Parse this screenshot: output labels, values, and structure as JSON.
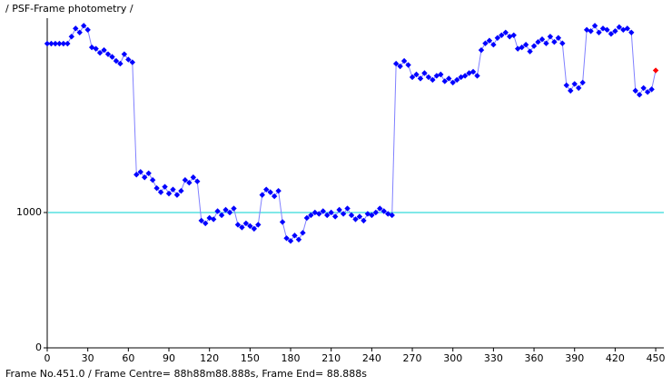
{
  "title": "/ PSF-Frame photometry /",
  "status_bar": "Frame No.451.0 / Frame Centre= 88h88m88.888s,  Frame End= 88.888s",
  "chart_data": {
    "type": "scatter",
    "x": [
      0,
      3,
      6,
      9,
      12,
      15,
      18,
      21,
      24,
      27,
      30,
      33,
      36,
      39,
      42,
      45,
      48,
      51,
      54,
      57,
      60,
      63,
      66,
      69,
      72,
      75,
      78,
      81,
      84,
      87,
      90,
      93,
      96,
      99,
      102,
      105,
      108,
      111,
      114,
      117,
      120,
      123,
      126,
      129,
      132,
      135,
      138,
      141,
      144,
      147,
      150,
      153,
      156,
      159,
      162,
      165,
      168,
      171,
      174,
      177,
      180,
      183,
      186,
      189,
      192,
      195,
      198,
      201,
      204,
      207,
      210,
      213,
      216,
      219,
      222,
      225,
      228,
      231,
      234,
      237,
      240,
      243,
      246,
      249,
      252,
      255,
      258,
      261,
      264,
      267,
      270,
      273,
      276,
      279,
      282,
      285,
      288,
      291,
      294,
      297,
      300,
      303,
      306,
      309,
      312,
      315,
      318,
      321,
      324,
      327,
      330,
      333,
      336,
      339,
      342,
      345,
      348,
      351,
      354,
      357,
      360,
      363,
      366,
      369,
      372,
      375,
      378,
      381,
      384,
      387,
      390,
      393,
      396,
      399,
      402,
      405,
      408,
      411,
      414,
      417,
      420,
      423,
      426,
      429,
      432,
      435,
      438,
      441,
      444,
      447,
      450
    ],
    "values": [
      2248,
      2248,
      2248,
      2248,
      2248,
      2248,
      2300,
      2360,
      2330,
      2380,
      2350,
      2220,
      2210,
      2180,
      2200,
      2170,
      2150,
      2120,
      2100,
      2170,
      2130,
      2110,
      1280,
      1300,
      1260,
      1290,
      1240,
      1180,
      1150,
      1190,
      1140,
      1170,
      1130,
      1160,
      1240,
      1220,
      1260,
      1230,
      940,
      920,
      960,
      950,
      1010,
      980,
      1020,
      1000,
      1030,
      910,
      890,
      920,
      900,
      880,
      910,
      1130,
      1170,
      1150,
      1120,
      1160,
      930,
      810,
      790,
      830,
      800,
      850,
      960,
      980,
      1000,
      990,
      1010,
      980,
      1000,
      970,
      1020,
      990,
      1030,
      980,
      950,
      970,
      940,
      990,
      980,
      1000,
      1030,
      1010,
      990,
      980,
      2100,
      2080,
      2120,
      2090,
      2000,
      2020,
      1990,
      2030,
      2000,
      1980,
      2010,
      2020,
      1970,
      1990,
      1960,
      1980,
      2000,
      2010,
      2030,
      2040,
      2010,
      2200,
      2250,
      2270,
      2240,
      2290,
      2310,
      2330,
      2300,
      2310,
      2210,
      2220,
      2240,
      2190,
      2230,
      2260,
      2280,
      2250,
      2300,
      2260,
      2290,
      2250,
      1940,
      1900,
      1950,
      1920,
      1960,
      2350,
      2340,
      2380,
      2330,
      2360,
      2350,
      2320,
      2340,
      2370,
      2350,
      2360,
      2330,
      1900,
      1870,
      1920,
      1890,
      1910,
      2050
    ],
    "color": "#0000ff",
    "line_color": "#8080ff",
    "last_point_color": "#ff0000",
    "hline": 1000,
    "hline_color": "#00d0d0",
    "xlim": [
      0,
      456
    ],
    "xticks": [
      0,
      30,
      60,
      90,
      120,
      150,
      180,
      210,
      240,
      270,
      300,
      330,
      360,
      390,
      420,
      450
    ],
    "ylim": [
      0,
      2436
    ],
    "yticks": [
      0,
      1000
    ]
  }
}
